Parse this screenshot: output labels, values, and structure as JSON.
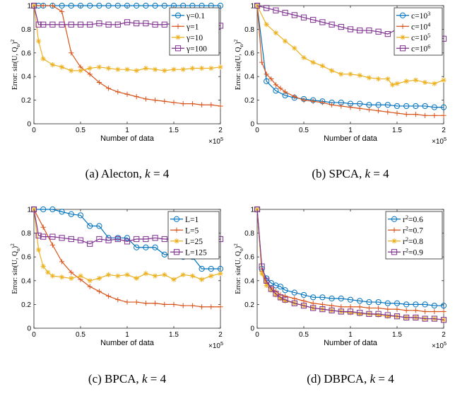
{
  "chart_data": [
    {
      "type": "line",
      "caption": "(a) Alecton, k = 4",
      "xlabel": "Number of data",
      "ylabel": "Error: sin(U, Q_n)^2",
      "x_multiplier": "×10^5",
      "xlim": [
        0,
        2
      ],
      "ylim": [
        0,
        1
      ],
      "xticks": [
        "0",
        "0.5",
        "1",
        "1.5",
        "2"
      ],
      "yticks": [
        "0",
        "0.2",
        "0.4",
        "0.6",
        "0.8",
        "1"
      ],
      "legend_position": "top-right",
      "series": [
        {
          "name": "γ=0.1",
          "color": "#0072BD",
          "marker": "circle",
          "x": [
            0,
            0.05,
            0.1,
            0.2,
            0.3,
            0.4,
            0.5,
            0.6,
            0.7,
            0.8,
            0.9,
            1.0,
            1.1,
            1.2,
            1.3,
            1.4,
            1.5,
            1.6,
            1.7,
            1.8,
            1.9,
            2.0
          ],
          "y": [
            1,
            1,
            1,
            1,
            1,
            1,
            1,
            1,
            1,
            1,
            1,
            1,
            1,
            1,
            1,
            1,
            1,
            1,
            1,
            1,
            1,
            1
          ]
        },
        {
          "name": "γ=1",
          "color": "#D95319",
          "marker": "plus",
          "x": [
            0,
            0.1,
            0.2,
            0.3,
            0.4,
            0.5,
            0.6,
            0.7,
            0.8,
            0.9,
            1.0,
            1.1,
            1.2,
            1.3,
            1.4,
            1.5,
            1.6,
            1.7,
            1.8,
            1.9,
            2.0
          ],
          "y": [
            1,
            1,
            1,
            0.95,
            0.6,
            0.48,
            0.42,
            0.35,
            0.3,
            0.27,
            0.25,
            0.23,
            0.21,
            0.2,
            0.19,
            0.18,
            0.17,
            0.17,
            0.16,
            0.16,
            0.15
          ]
        },
        {
          "name": "γ=10",
          "color": "#EDB120",
          "marker": "star",
          "x": [
            0,
            0.05,
            0.1,
            0.2,
            0.3,
            0.4,
            0.5,
            0.6,
            0.7,
            0.8,
            0.9,
            1.0,
            1.1,
            1.2,
            1.3,
            1.4,
            1.5,
            1.6,
            1.7,
            1.8,
            1.9,
            2.0
          ],
          "y": [
            1,
            0.7,
            0.55,
            0.5,
            0.48,
            0.45,
            0.45,
            0.47,
            0.48,
            0.47,
            0.46,
            0.46,
            0.45,
            0.47,
            0.46,
            0.45,
            0.46,
            0.46,
            0.47,
            0.47,
            0.47,
            0.48
          ]
        },
        {
          "name": "γ=100",
          "color": "#7E2F8E",
          "marker": "square",
          "x": [
            0,
            0.05,
            0.1,
            0.2,
            0.3,
            0.4,
            0.5,
            0.6,
            0.7,
            0.8,
            0.9,
            1.0,
            1.1,
            1.2,
            1.3,
            1.4,
            1.5,
            1.6,
            1.7,
            1.8,
            1.9,
            2.0
          ],
          "y": [
            1,
            0.84,
            0.84,
            0.84,
            0.84,
            0.84,
            0.84,
            0.84,
            0.85,
            0.84,
            0.84,
            0.86,
            0.85,
            0.85,
            0.84,
            0.84,
            0.85,
            0.84,
            0.84,
            0.84,
            0.83,
            0.83
          ]
        }
      ]
    },
    {
      "type": "line",
      "caption": "(b) SPCA, k = 4",
      "xlabel": "Number of data",
      "ylabel": "Error: sin(U, Q_n)^2",
      "x_multiplier": "×10^5",
      "xlim": [
        0,
        2
      ],
      "ylim": [
        0,
        1
      ],
      "xticks": [
        "0",
        "0.5",
        "1",
        "1.5",
        "2"
      ],
      "yticks": [
        "0",
        "0.2",
        "0.4",
        "0.6",
        "0.8",
        "1"
      ],
      "legend_position": "top-right",
      "series": [
        {
          "name": "c=10^3",
          "color": "#0072BD",
          "marker": "circle",
          "x": [
            0,
            0.1,
            0.2,
            0.3,
            0.4,
            0.5,
            0.6,
            0.7,
            0.8,
            0.9,
            1.0,
            1.1,
            1.2,
            1.3,
            1.4,
            1.5,
            1.6,
            1.7,
            1.8,
            1.9,
            2.0
          ],
          "y": [
            1,
            0.36,
            0.28,
            0.24,
            0.22,
            0.21,
            0.2,
            0.19,
            0.18,
            0.18,
            0.17,
            0.17,
            0.16,
            0.16,
            0.16,
            0.15,
            0.15,
            0.15,
            0.15,
            0.14,
            0.14
          ]
        },
        {
          "name": "c=10^4",
          "color": "#D95319",
          "marker": "plus",
          "x": [
            0,
            0.05,
            0.1,
            0.15,
            0.2,
            0.25,
            0.3,
            0.4,
            0.5,
            0.6,
            0.7,
            0.8,
            0.9,
            1.0,
            1.1,
            1.2,
            1.3,
            1.4,
            1.5,
            1.6,
            1.7,
            1.8,
            1.9,
            2.0
          ],
          "y": [
            1,
            0.52,
            0.42,
            0.38,
            0.33,
            0.3,
            0.27,
            0.23,
            0.2,
            0.19,
            0.18,
            0.16,
            0.15,
            0.14,
            0.13,
            0.12,
            0.11,
            0.1,
            0.09,
            0.08,
            0.08,
            0.07,
            0.07,
            0.07
          ]
        },
        {
          "name": "c=10^5",
          "color": "#EDB120",
          "marker": "star",
          "x": [
            0,
            0.1,
            0.2,
            0.3,
            0.4,
            0.5,
            0.6,
            0.7,
            0.8,
            0.9,
            1.0,
            1.1,
            1.2,
            1.3,
            1.4,
            1.45,
            1.5,
            1.6,
            1.7,
            1.8,
            1.9,
            2.0
          ],
          "y": [
            1,
            0.84,
            0.77,
            0.7,
            0.64,
            0.56,
            0.52,
            0.49,
            0.45,
            0.42,
            0.42,
            0.41,
            0.39,
            0.38,
            0.38,
            0.33,
            0.34,
            0.36,
            0.37,
            0.35,
            0.34,
            0.37
          ]
        },
        {
          "name": "c=10^6",
          "color": "#7E2F8E",
          "marker": "square",
          "x": [
            0,
            0.1,
            0.2,
            0.3,
            0.4,
            0.5,
            0.6,
            0.7,
            0.8,
            0.9,
            1.0,
            1.1,
            1.2,
            1.3,
            1.4,
            1.5,
            1.6,
            1.7,
            1.8,
            1.9,
            2.0
          ],
          "y": [
            1,
            0.98,
            0.96,
            0.94,
            0.92,
            0.9,
            0.88,
            0.86,
            0.84,
            0.82,
            0.8,
            0.79,
            0.79,
            0.78,
            0.76,
            0.8,
            0.79,
            0.8,
            0.78,
            0.75,
            0.72
          ]
        }
      ]
    },
    {
      "type": "line",
      "caption": "(c) BPCA, k = 4",
      "xlabel": "Number of data",
      "ylabel": "Error: sin(U, Q_n)^2",
      "x_multiplier": "×10^5",
      "xlim": [
        0,
        2
      ],
      "ylim": [
        0,
        1
      ],
      "xticks": [
        "0",
        "0.5",
        "1",
        "1.5",
        "2"
      ],
      "yticks": [
        "0",
        "0.2",
        "0.4",
        "0.6",
        "0.8",
        "1"
      ],
      "legend_position": "top-right",
      "series": [
        {
          "name": "L=1",
          "color": "#0072BD",
          "marker": "circle",
          "x": [
            0,
            0.1,
            0.2,
            0.3,
            0.4,
            0.5,
            0.6,
            0.7,
            0.8,
            0.9,
            1.0,
            1.1,
            1.2,
            1.3,
            1.4,
            1.5,
            1.6,
            1.7,
            1.8,
            1.9,
            2.0
          ],
          "y": [
            1,
            1,
            1,
            0.98,
            0.96,
            0.95,
            0.86,
            0.86,
            0.76,
            0.76,
            0.76,
            0.68,
            0.68,
            0.68,
            0.62,
            0.62,
            0.6,
            0.6,
            0.5,
            0.5,
            0.5
          ]
        },
        {
          "name": "L=5",
          "color": "#D95319",
          "marker": "plus",
          "x": [
            0,
            0.1,
            0.2,
            0.3,
            0.4,
            0.5,
            0.6,
            0.7,
            0.8,
            0.9,
            1.0,
            1.1,
            1.2,
            1.3,
            1.4,
            1.5,
            1.6,
            1.7,
            1.8,
            1.9,
            2.0
          ],
          "y": [
            1,
            0.85,
            0.7,
            0.56,
            0.47,
            0.41,
            0.35,
            0.31,
            0.27,
            0.24,
            0.22,
            0.22,
            0.21,
            0.21,
            0.2,
            0.2,
            0.19,
            0.19,
            0.18,
            0.18,
            0.18
          ]
        },
        {
          "name": "L=25",
          "color": "#EDB120",
          "marker": "star",
          "x": [
            0,
            0.05,
            0.1,
            0.15,
            0.2,
            0.3,
            0.4,
            0.5,
            0.6,
            0.7,
            0.8,
            0.9,
            1.0,
            1.1,
            1.2,
            1.3,
            1.4,
            1.5,
            1.6,
            1.7,
            1.8,
            1.9,
            2.0
          ],
          "y": [
            1,
            0.66,
            0.52,
            0.47,
            0.44,
            0.43,
            0.42,
            0.44,
            0.4,
            0.42,
            0.45,
            0.44,
            0.45,
            0.42,
            0.46,
            0.44,
            0.45,
            0.41,
            0.45,
            0.44,
            0.41,
            0.44,
            0.46
          ]
        },
        {
          "name": "L=125",
          "color": "#7E2F8E",
          "marker": "square",
          "x": [
            0,
            0.05,
            0.1,
            0.2,
            0.3,
            0.4,
            0.5,
            0.6,
            0.7,
            0.8,
            0.9,
            1.0,
            1.1,
            1.2,
            1.3,
            1.4,
            1.5,
            1.6,
            1.7,
            1.8,
            1.9,
            2.0
          ],
          "y": [
            1,
            0.78,
            0.77,
            0.77,
            0.76,
            0.75,
            0.74,
            0.71,
            0.75,
            0.74,
            0.75,
            0.73,
            0.75,
            0.75,
            0.76,
            0.75,
            0.75,
            0.76,
            0.74,
            0.75,
            0.74,
            0.75
          ]
        }
      ]
    },
    {
      "type": "line",
      "caption": "(d) DBPCA, k = 4",
      "xlabel": "Number of data",
      "ylabel": "Error: sin(U, Q_n)^2",
      "x_multiplier": "×10^5",
      "xlim": [
        0,
        2
      ],
      "ylim": [
        0,
        1
      ],
      "xticks": [
        "0",
        "0.5",
        "1",
        "1.5",
        "2"
      ],
      "yticks": [
        "0",
        "0.2",
        "0.4",
        "0.6",
        "0.8",
        "1"
      ],
      "legend_position": "top-right",
      "series": [
        {
          "name": "r^2=0.6",
          "color": "#0072BD",
          "marker": "circle",
          "x": [
            0,
            0.05,
            0.1,
            0.15,
            0.2,
            0.25,
            0.3,
            0.4,
            0.5,
            0.6,
            0.7,
            0.8,
            0.9,
            1.0,
            1.1,
            1.2,
            1.3,
            1.4,
            1.5,
            1.6,
            1.7,
            1.8,
            1.9,
            2.0
          ],
          "y": [
            1,
            0.5,
            0.42,
            0.38,
            0.36,
            0.35,
            0.32,
            0.3,
            0.28,
            0.26,
            0.26,
            0.25,
            0.25,
            0.24,
            0.23,
            0.22,
            0.22,
            0.21,
            0.21,
            0.2,
            0.2,
            0.2,
            0.19,
            0.19
          ]
        },
        {
          "name": "r^2=0.7",
          "color": "#D95319",
          "marker": "plus",
          "x": [
            0,
            0.05,
            0.1,
            0.15,
            0.2,
            0.25,
            0.3,
            0.4,
            0.5,
            0.6,
            0.7,
            0.8,
            0.9,
            1.0,
            1.1,
            1.2,
            1.3,
            1.4,
            1.5,
            1.6,
            1.7,
            1.8,
            1.9,
            2.0
          ],
          "y": [
            1,
            0.48,
            0.38,
            0.34,
            0.31,
            0.28,
            0.27,
            0.25,
            0.23,
            0.21,
            0.2,
            0.19,
            0.18,
            0.18,
            0.18,
            0.17,
            0.17,
            0.16,
            0.16,
            0.15,
            0.15,
            0.14,
            0.14,
            0.14
          ]
        },
        {
          "name": "r^2=0.8",
          "color": "#EDB120",
          "marker": "star",
          "x": [
            0,
            0.05,
            0.1,
            0.15,
            0.2,
            0.25,
            0.3,
            0.4,
            0.5,
            0.6,
            0.7,
            0.8,
            0.9,
            1.0,
            1.1,
            1.2,
            1.3,
            1.4,
            1.5,
            1.6,
            1.7,
            1.8,
            1.9,
            2.0
          ],
          "y": [
            1,
            0.46,
            0.36,
            0.32,
            0.28,
            0.25,
            0.23,
            0.21,
            0.19,
            0.17,
            0.16,
            0.15,
            0.14,
            0.13,
            0.12,
            0.12,
            0.11,
            0.1,
            0.1,
            0.09,
            0.09,
            0.08,
            0.08,
            0.07
          ]
        },
        {
          "name": "r^2=0.9",
          "color": "#7E2F8E",
          "marker": "square",
          "x": [
            0,
            0.05,
            0.1,
            0.15,
            0.2,
            0.25,
            0.3,
            0.4,
            0.5,
            0.6,
            0.7,
            0.8,
            0.9,
            1.0,
            1.1,
            1.2,
            1.3,
            1.4,
            1.5,
            1.6,
            1.7,
            1.8,
            1.9,
            2.0
          ],
          "y": [
            1,
            0.52,
            0.4,
            0.33,
            0.29,
            0.26,
            0.24,
            0.21,
            0.19,
            0.17,
            0.16,
            0.15,
            0.14,
            0.14,
            0.13,
            0.12,
            0.12,
            0.11,
            0.1,
            0.09,
            0.09,
            0.08,
            0.08,
            0.07
          ]
        }
      ]
    }
  ]
}
